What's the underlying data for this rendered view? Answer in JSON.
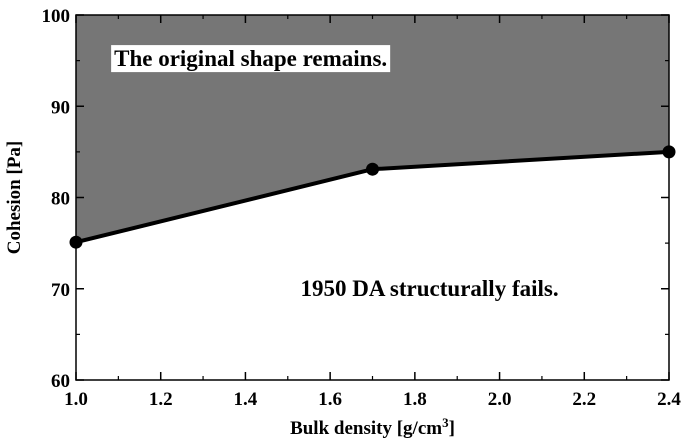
{
  "chart_data": {
    "type": "line",
    "title": "",
    "xlabel": "Bulk density [g/cm",
    "xlabel_sup": "3",
    "xlabel_tail": "]",
    "ylabel": "Cohesion [Pa]",
    "xlim": [
      1.0,
      2.4
    ],
    "ylim": [
      60,
      100
    ],
    "x_ticks": [
      "1.0",
      "1.2",
      "1.4",
      "1.6",
      "1.8",
      "2.0",
      "2.2",
      "2.4"
    ],
    "y_ticks": [
      "60",
      "70",
      "80",
      "90",
      "100"
    ],
    "grid": false,
    "legend": "none",
    "series": [
      {
        "x": [
          1.0,
          1.7,
          2.4
        ],
        "y": [
          75.1,
          83.1,
          85.0
        ]
      }
    ],
    "region_above_color": "#767676",
    "region_below_color": "#ffffff",
    "line_color": "#000000",
    "annotations": [
      {
        "text": "The original shape remains.",
        "x": 1.09,
        "y": 94.4
      },
      {
        "text": "1950 DA structurally fails.",
        "x": 1.53,
        "y": 69.2
      }
    ]
  }
}
